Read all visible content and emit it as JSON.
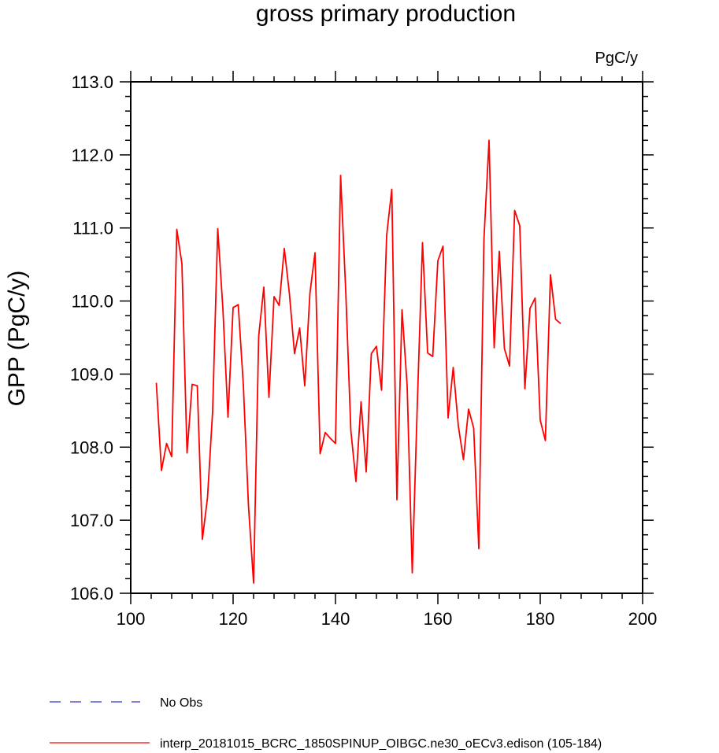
{
  "chart_data": {
    "type": "line",
    "title": "gross primary production",
    "units": "PgC/y",
    "ylabel": "GPP  (PgC/y)",
    "xlabel": "",
    "xlim": [
      100,
      200
    ],
    "ylim": [
      106.0,
      113.0
    ],
    "x_ticks": [
      "100",
      "120",
      "140",
      "160",
      "180",
      "200"
    ],
    "y_ticks": [
      "106.0",
      "107.0",
      "108.0",
      "109.0",
      "110.0",
      "111.0",
      "112.0",
      "113.0"
    ],
    "grid": false,
    "series": [
      {
        "name": "interp_20181015_BCRC_1850SPINUP_OIBGC.ne30_oECv3.edison (105-184)",
        "color": "#ff0000",
        "x": [
          105,
          106,
          107,
          108,
          109,
          110,
          111,
          112,
          113,
          114,
          115,
          116,
          117,
          118,
          119,
          120,
          121,
          122,
          123,
          124,
          125,
          126,
          127,
          128,
          129,
          130,
          131,
          132,
          133,
          134,
          135,
          136,
          137,
          138,
          139,
          140,
          141,
          142,
          143,
          144,
          145,
          146,
          147,
          148,
          149,
          150,
          151,
          152,
          153,
          154,
          155,
          156,
          157,
          158,
          159,
          160,
          161,
          162,
          163,
          164,
          165,
          166,
          167,
          168,
          169,
          170,
          171,
          172,
          173,
          174,
          175,
          176,
          177,
          178,
          179,
          180,
          181,
          182,
          183,
          184
        ],
        "y": [
          108.88,
          107.68,
          108.05,
          107.87,
          110.98,
          110.51,
          107.92,
          108.86,
          108.84,
          106.74,
          107.31,
          108.49,
          110.99,
          109.9,
          108.41,
          109.91,
          109.95,
          108.85,
          107.2,
          106.14,
          109.52,
          110.19,
          108.68,
          110.06,
          109.94,
          110.72,
          110.1,
          109.28,
          109.63,
          108.84,
          110.1,
          110.66,
          107.91,
          108.2,
          108.12,
          108.05,
          111.72,
          110.14,
          108.23,
          107.53,
          108.62,
          107.66,
          109.28,
          109.38,
          108.78,
          110.9,
          111.53,
          107.28,
          109.88,
          108.84,
          106.28,
          108.62,
          110.8,
          109.29,
          109.24,
          110.55,
          110.75,
          108.4,
          109.09,
          108.29,
          107.83,
          108.52,
          108.26,
          106.61,
          110.84,
          112.2,
          109.36,
          110.68,
          109.35,
          109.11,
          111.24,
          111.03,
          108.8,
          109.9,
          110.04,
          108.37,
          108.09,
          110.36,
          109.75,
          109.69
        ]
      }
    ],
    "legend": [
      {
        "label": "No Obs",
        "color": "#3333cc",
        "dash": true
      },
      {
        "label": "interp_20181015_BCRC_1850SPINUP_OIBGC.ne30_oECv3.edison (105-184)",
        "color": "#ff0000",
        "dash": false
      }
    ]
  }
}
